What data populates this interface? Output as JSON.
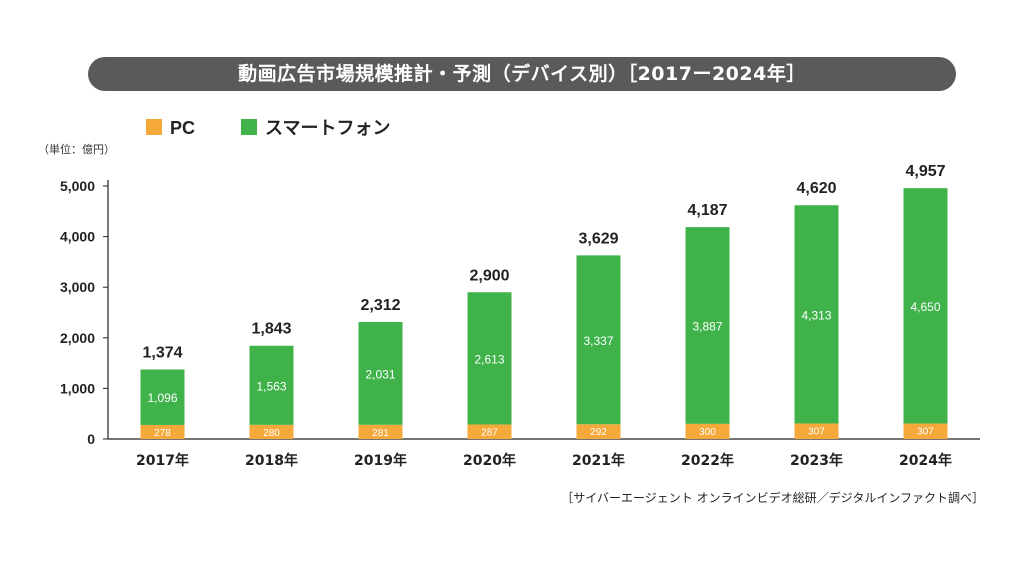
{
  "title": "動画広告市場規模推計・予測（デバイス別）［2017ー2024年］",
  "unit_label": "（単位：億円）",
  "source": "［サイバーエージェント オンラインビデオ総研／デジタルインファクト調べ］",
  "colors": {
    "pc": "#f5a93a",
    "smartphone": "#3fb34a"
  },
  "chart_data": {
    "type": "bar",
    "stacked": true,
    "categories": [
      "2017年",
      "2018年",
      "2019年",
      "2020年",
      "2021年",
      "2022年",
      "2023年",
      "2024年"
    ],
    "series": [
      {
        "name": "PC",
        "values": [
          278,
          280,
          281,
          287,
          292,
          300,
          307,
          307
        ]
      },
      {
        "name": "スマートフォン",
        "values": [
          1096,
          1563,
          2031,
          2613,
          3337,
          3887,
          4313,
          4650
        ]
      }
    ],
    "totals": [
      1374,
      1843,
      2312,
      2900,
      3629,
      4187,
      4620,
      4957
    ],
    "total_labels": [
      "1,374",
      "1,843",
      "2,312",
      "2,900",
      "3,629",
      "4,187",
      "4,620",
      "4,957"
    ],
    "ylim": [
      0,
      5000
    ],
    "yticks": [
      0,
      1000,
      2000,
      3000,
      4000,
      5000
    ],
    "ytick_labels": [
      "0",
      "1,000",
      "2,000",
      "3,000",
      "4,000",
      "5,000"
    ],
    "legend_position": "top-left",
    "grid": false
  }
}
